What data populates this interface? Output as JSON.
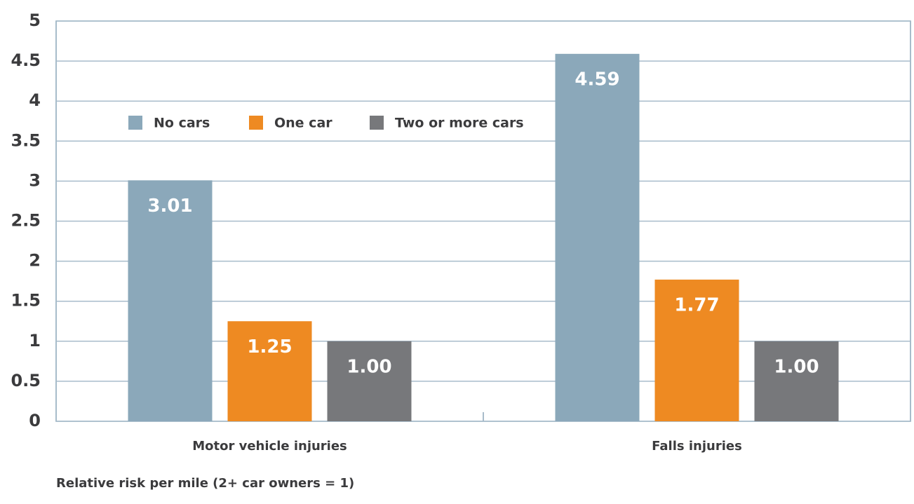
{
  "chart_data": {
    "type": "bar",
    "categories": [
      "Motor vehicle injuries",
      "Falls injuries"
    ],
    "series": [
      {
        "name": "No cars",
        "color": "#8ba8ba",
        "values": [
          3.01,
          4.59
        ],
        "value_labels": [
          "3.01",
          "4.59"
        ]
      },
      {
        "name": "One car",
        "color": "#ee8a22",
        "values": [
          1.25,
          1.77
        ],
        "value_labels": [
          "1.25",
          "1.77"
        ]
      },
      {
        "name": "Two or more cars",
        "color": "#77787b",
        "values": [
          1,
          1
        ],
        "value_labels": [
          "1.00",
          "1.00"
        ]
      }
    ],
    "ylim": [
      0,
      5
    ],
    "yticks": [
      0,
      0.5,
      1,
      1.5,
      2,
      2.5,
      3,
      3.5,
      4,
      4.5,
      5
    ],
    "grid": true,
    "legend": "upper left",
    "xlabel": "Relative risk per mile (2+ car owners = 1)"
  }
}
